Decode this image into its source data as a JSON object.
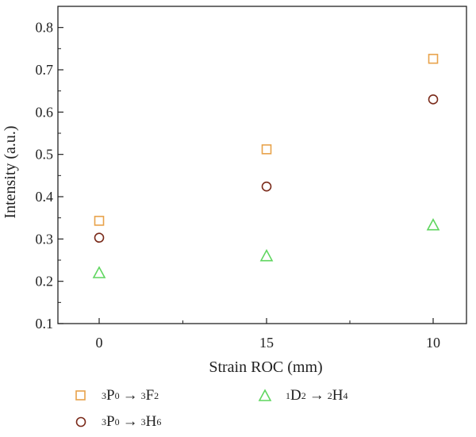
{
  "chart_data": {
    "type": "scatter",
    "xlabel": "Strain ROC (mm)",
    "ylabel": "Intensity (a.u.)",
    "categories": [
      "0",
      "15",
      "10"
    ],
    "ylim": [
      0.1,
      0.85
    ],
    "yticks": [
      "0.1",
      "0.2",
      "0.3",
      "0.4",
      "0.5",
      "0.6",
      "0.7",
      "0.8"
    ],
    "grid": false,
    "legend_position": "bottom",
    "series": [
      {
        "name": "3P0 → 3F2",
        "marker": "square",
        "color": "#e8a24a",
        "values": [
          0.343,
          0.512,
          0.726
        ]
      },
      {
        "name": "3P0 → 3H6",
        "marker": "circle",
        "color": "#7a2a1a",
        "values": [
          0.303,
          0.424,
          0.63
        ]
      },
      {
        "name": "1D2 → 2H4",
        "marker": "triangle",
        "color": "#5fd65f",
        "values": [
          0.22,
          0.26,
          0.333
        ]
      }
    ]
  },
  "legend": {
    "items": [
      {
        "pre_sup": "3",
        "a": "P",
        "a_sub": "0",
        "arrow": "→",
        "post_sup": "3",
        "b": "F",
        "b_sub": "2"
      },
      {
        "pre_sup": "3",
        "a": "P",
        "a_sub": "0",
        "arrow": "→",
        "post_sup": "3",
        "b": "H",
        "b_sub": "6"
      },
      {
        "pre_sup": "1",
        "a": "D",
        "a_sub": "2",
        "arrow": "→",
        "post_sup": "2",
        "b": "H",
        "b_sub": "4"
      }
    ]
  }
}
